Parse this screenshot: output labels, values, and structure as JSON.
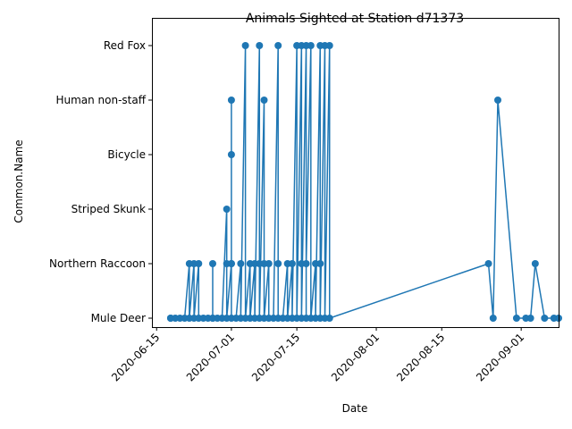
{
  "chart_data": {
    "type": "line",
    "title": "Animals Sighted at Station d71373",
    "xlabel": "Date",
    "ylabel": "Common.Name",
    "categories": [
      "Mule Deer",
      "Northern Raccoon",
      "Striped Skunk",
      "Bicycle",
      "Human non-staff",
      "Red Fox"
    ],
    "x_ticks": [
      "2020-06-15",
      "2020-07-01",
      "2020-07-15",
      "2020-08-01",
      "2020-08-15",
      "2020-09-01"
    ],
    "xlim": [
      "2020-06-14",
      "2020-09-09"
    ],
    "line_color": "#1f77b4",
    "grid": false,
    "series": [
      {
        "points": [
          [
            "2020-06-18",
            "Mule Deer"
          ],
          [
            "2020-06-18",
            "Mule Deer"
          ],
          [
            "2020-06-19",
            "Mule Deer"
          ],
          [
            "2020-06-20",
            "Mule Deer"
          ],
          [
            "2020-06-21",
            "Mule Deer"
          ],
          [
            "2020-06-22",
            "Northern Raccoon"
          ],
          [
            "2020-06-22",
            "Mule Deer"
          ],
          [
            "2020-06-23",
            "Northern Raccoon"
          ],
          [
            "2020-06-23",
            "Mule Deer"
          ],
          [
            "2020-06-24",
            "Northern Raccoon"
          ],
          [
            "2020-06-24",
            "Mule Deer"
          ],
          [
            "2020-06-25",
            "Mule Deer"
          ],
          [
            "2020-06-26",
            "Mule Deer"
          ],
          [
            "2020-06-27",
            "Mule Deer"
          ],
          [
            "2020-06-27",
            "Northern Raccoon"
          ],
          [
            "2020-06-27",
            "Mule Deer"
          ],
          [
            "2020-06-28",
            "Mule Deer"
          ],
          [
            "2020-06-29",
            "Mule Deer"
          ],
          [
            "2020-06-30",
            "Striped Skunk"
          ],
          [
            "2020-06-30",
            "Northern Raccoon"
          ],
          [
            "2020-06-30",
            "Mule Deer"
          ],
          [
            "2020-07-01",
            "Northern Raccoon"
          ],
          [
            "2020-07-01",
            "Human non-staff"
          ],
          [
            "2020-07-01",
            "Bicycle"
          ],
          [
            "2020-07-01",
            "Northern Raccoon"
          ],
          [
            "2020-07-01",
            "Mule Deer"
          ],
          [
            "2020-07-02",
            "Mule Deer"
          ],
          [
            "2020-07-03",
            "Northern Raccoon"
          ],
          [
            "2020-07-03",
            "Mule Deer"
          ],
          [
            "2020-07-04",
            "Red Fox"
          ],
          [
            "2020-07-04",
            "Mule Deer"
          ],
          [
            "2020-07-05",
            "Northern Raccoon"
          ],
          [
            "2020-07-05",
            "Mule Deer"
          ],
          [
            "2020-07-06",
            "Northern Raccoon"
          ],
          [
            "2020-07-06",
            "Mule Deer"
          ],
          [
            "2020-07-07",
            "Red Fox"
          ],
          [
            "2020-07-07",
            "Northern Raccoon"
          ],
          [
            "2020-07-07",
            "Mule Deer"
          ],
          [
            "2020-07-08",
            "Human non-staff"
          ],
          [
            "2020-07-08",
            "Northern Raccoon"
          ],
          [
            "2020-07-08",
            "Mule Deer"
          ],
          [
            "2020-07-09",
            "Northern Raccoon"
          ],
          [
            "2020-07-09",
            "Mule Deer"
          ],
          [
            "2020-07-10",
            "Mule Deer"
          ],
          [
            "2020-07-11",
            "Red Fox"
          ],
          [
            "2020-07-11",
            "Northern Raccoon"
          ],
          [
            "2020-07-11",
            "Mule Deer"
          ],
          [
            "2020-07-12",
            "Mule Deer"
          ],
          [
            "2020-07-13",
            "Northern Raccoon"
          ],
          [
            "2020-07-13",
            "Mule Deer"
          ],
          [
            "2020-07-14",
            "Northern Raccoon"
          ],
          [
            "2020-07-14",
            "Mule Deer"
          ],
          [
            "2020-07-15",
            "Red Fox"
          ],
          [
            "2020-07-15",
            "Mule Deer"
          ],
          [
            "2020-07-16",
            "Red Fox"
          ],
          [
            "2020-07-16",
            "Northern Raccoon"
          ],
          [
            "2020-07-16",
            "Mule Deer"
          ],
          [
            "2020-07-17",
            "Red Fox"
          ],
          [
            "2020-07-17",
            "Mule Deer"
          ],
          [
            "2020-07-17",
            "Northern Raccoon"
          ],
          [
            "2020-07-18",
            "Red Fox"
          ],
          [
            "2020-07-18",
            "Mule Deer"
          ],
          [
            "2020-07-19",
            "Northern Raccoon"
          ],
          [
            "2020-07-19",
            "Mule Deer"
          ],
          [
            "2020-07-20",
            "Red Fox"
          ],
          [
            "2020-07-20",
            "Northern Raccoon"
          ],
          [
            "2020-07-20",
            "Mule Deer"
          ],
          [
            "2020-07-21",
            "Red Fox"
          ],
          [
            "2020-07-21",
            "Mule Deer"
          ],
          [
            "2020-07-22",
            "Red Fox"
          ],
          [
            "2020-07-22",
            "Mule Deer"
          ],
          [
            "2020-08-25",
            "Northern Raccoon"
          ],
          [
            "2020-08-26",
            "Mule Deer"
          ],
          [
            "2020-08-27",
            "Human non-staff"
          ],
          [
            "2020-08-31",
            "Mule Deer"
          ],
          [
            "2020-09-02",
            "Mule Deer"
          ],
          [
            "2020-09-03",
            "Mule Deer"
          ],
          [
            "2020-09-04",
            "Northern Raccoon"
          ],
          [
            "2020-09-06",
            "Mule Deer"
          ],
          [
            "2020-09-08",
            "Mule Deer"
          ],
          [
            "2020-09-09",
            "Mule Deer"
          ]
        ]
      }
    ]
  }
}
